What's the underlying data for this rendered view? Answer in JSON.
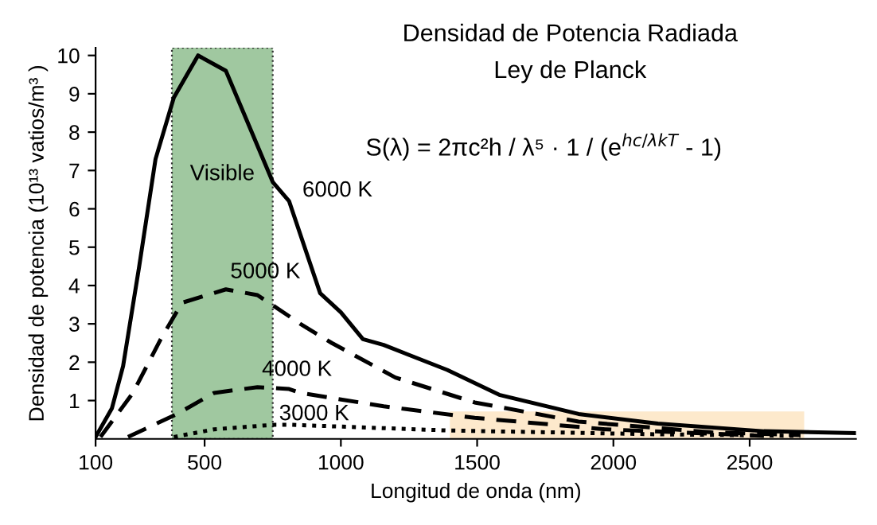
{
  "chart_data": {
    "type": "line",
    "title": "Densidad de Potencia Radiada",
    "subtitle": "Ley de Planck",
    "xlabel": "Longitud de onda (nm)",
    "ylabel": "Densidad de potencia (10¹³ vatios/m³ )",
    "xlim": [
      100,
      2890
    ],
    "xticks": [
      100,
      500,
      1000,
      1500,
      2000,
      2500
    ],
    "ylim": [
      0,
      10.2
    ],
    "yticks": [
      1,
      2,
      3,
      4,
      5,
      6,
      7,
      8,
      9,
      10
    ],
    "grid": false,
    "legend": false,
    "marker": "none",
    "series": [
      {
        "name": "6000 K",
        "color": "#000000",
        "line_style": "solid",
        "x": [
          100,
          160,
          201,
          260,
          320,
          387,
          476,
          578,
          750,
          810,
          924,
          1000,
          1081,
          1157,
          1390,
          1581,
          1872,
          2163,
          2552,
          2890
        ],
        "values": [
          0.05,
          0.8,
          1.9,
          4.5,
          7.3,
          8.9,
          10,
          9.6,
          6.7,
          6.2,
          3.8,
          3.3,
          2.6,
          2.45,
          1.8,
          1.15,
          0.65,
          0.4,
          0.2,
          0.15
        ]
      },
      {
        "name": "5000 K",
        "color": "#000000",
        "line_style": "dashed",
        "x": [
          118,
          237,
          339,
          417,
          578,
          694,
          810,
          851,
          967,
          1200,
          1491,
          1872,
          2360,
          2686
        ],
        "values": [
          0.05,
          1.2,
          2.6,
          3.55,
          3.9,
          3.75,
          3.2,
          3.0,
          2.5,
          1.6,
          0.95,
          0.45,
          0.17,
          0.1
        ]
      },
      {
        "name": "4000 K",
        "color": "#000000",
        "line_style": "dashed",
        "x": [
          219,
          399,
          535,
          694,
          810,
          851,
          1157,
          1491,
          1971,
          2552
        ],
        "values": [
          0.05,
          0.65,
          1.2,
          1.35,
          1.3,
          1.2,
          0.85,
          0.55,
          0.25,
          0.08
        ]
      },
      {
        "name": "3000 K",
        "color": "#000000",
        "line_style": "dotted",
        "x": [
          387,
          535,
          757,
          810,
          1390,
          2163,
          2686
        ],
        "values": [
          0.05,
          0.25,
          0.37,
          0.37,
          0.22,
          0.12,
          0.08
        ]
      }
    ],
    "bands": [
      {
        "axis": "x",
        "from": 380,
        "to": 750,
        "label": "Visible",
        "color": "#a0c8a0"
      },
      {
        "axis": "x",
        "from": 1400,
        "to": 2700,
        "color": "#fde9cc"
      }
    ],
    "annotations": [
      "S(λ) = 2πc²h / λ⁵ · 1 / (e$^{hc/λkT}$ - 1)"
    ]
  }
}
